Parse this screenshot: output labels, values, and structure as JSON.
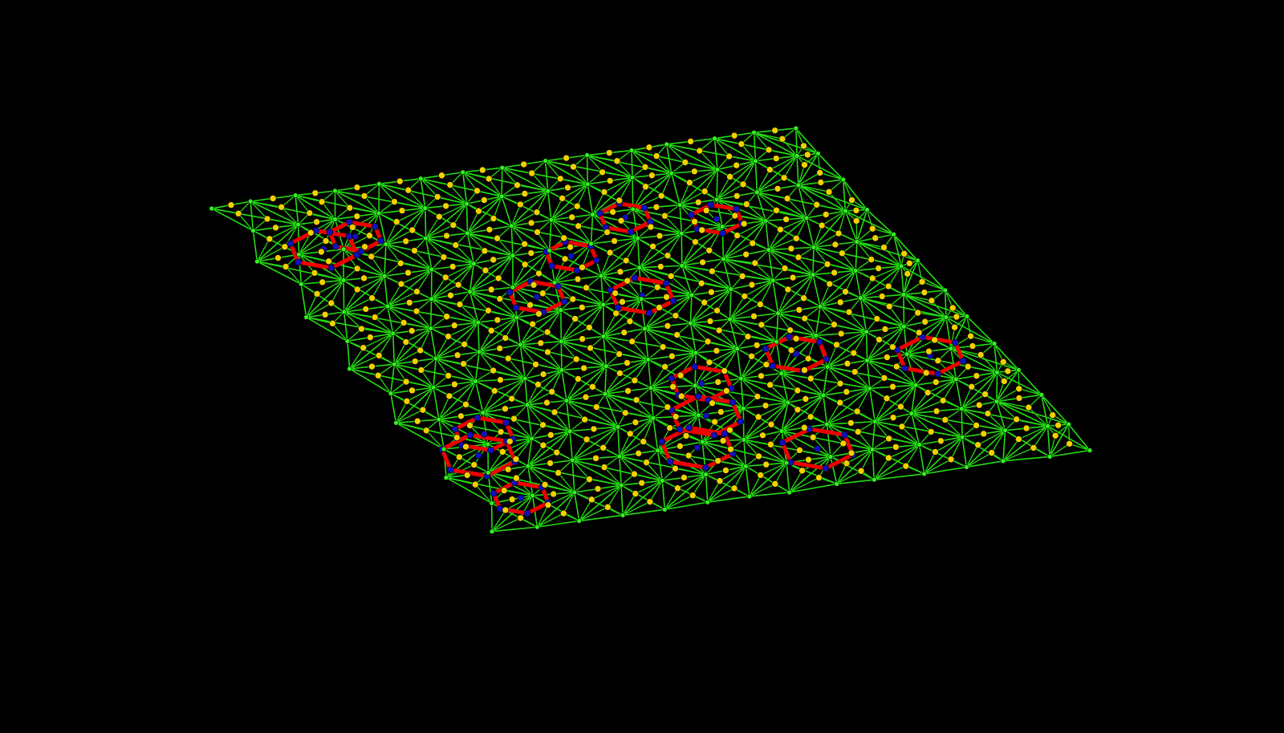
{
  "scene": {
    "background_color": "#000000",
    "bond_color": "#22dd11",
    "ring_bond_color": "#ee0000",
    "node_color": "#f2d000",
    "ring_node_color": "#1010bb",
    "hub_node_color": "#33ee22"
  }
}
